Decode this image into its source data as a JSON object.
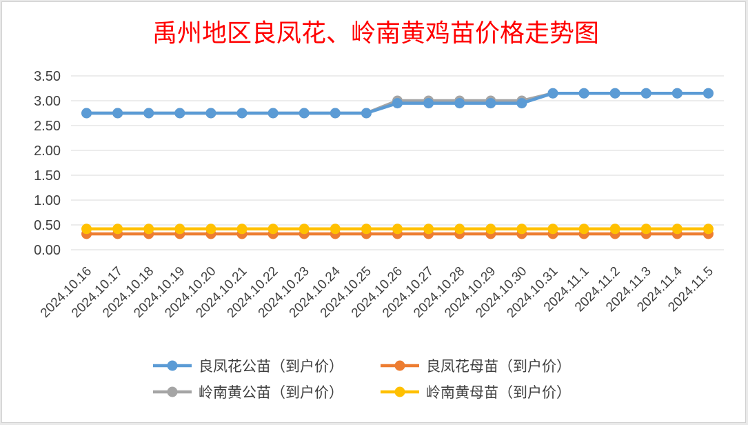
{
  "chart_data": {
    "type": "line",
    "title": "禹州地区良凤花、岭南黄鸡苗价格走势图",
    "xlabel": "",
    "ylabel": "",
    "ylim": [
      0,
      3.5
    ],
    "yticks": [
      "0.00",
      "0.50",
      "1.00",
      "1.50",
      "2.00",
      "2.50",
      "3.00",
      "3.50"
    ],
    "grid": true,
    "legend_position": "bottom",
    "categories": [
      "2024.10.16",
      "2024.10.17",
      "2024.10.18",
      "2024.10.19",
      "2024.10.20",
      "2024.10.21",
      "2024.10.22",
      "2024.10.23",
      "2024.10.24",
      "2024.10.25",
      "2024.10.26",
      "2024.10.27",
      "2024.10.28",
      "2024.10.29",
      "2024.10.30",
      "2024.10.31",
      "2024.11.1",
      "2024.11.2",
      "2024.11.3",
      "2024.11.4",
      "2024.11.5"
    ],
    "series": [
      {
        "name": "良凤花公苗（到户价）",
        "color": "#5b9bd5",
        "values": [
          2.75,
          2.75,
          2.75,
          2.75,
          2.75,
          2.75,
          2.75,
          2.75,
          2.75,
          2.75,
          2.95,
          2.95,
          2.95,
          2.95,
          2.95,
          3.15,
          3.15,
          3.15,
          3.15,
          3.15,
          3.15
        ]
      },
      {
        "name": "良凤花母苗（到户价）",
        "color": "#ed7d31",
        "values": [
          0.32,
          0.32,
          0.32,
          0.32,
          0.32,
          0.32,
          0.32,
          0.32,
          0.32,
          0.32,
          0.32,
          0.32,
          0.32,
          0.32,
          0.32,
          0.32,
          0.32,
          0.32,
          0.32,
          0.32,
          0.32
        ]
      },
      {
        "name": "岭南黄公苗（到户价）",
        "color": "#a5a5a5",
        "values": [
          2.75,
          2.75,
          2.75,
          2.75,
          2.75,
          2.75,
          2.75,
          2.75,
          2.75,
          2.75,
          3.0,
          3.0,
          3.0,
          3.0,
          3.0,
          3.15,
          3.15,
          3.15,
          3.15,
          3.15,
          3.15
        ]
      },
      {
        "name": "岭南黄母苗（到户价）",
        "color": "#ffc000",
        "values": [
          0.42,
          0.42,
          0.42,
          0.42,
          0.42,
          0.42,
          0.42,
          0.42,
          0.42,
          0.42,
          0.42,
          0.42,
          0.42,
          0.42,
          0.42,
          0.42,
          0.42,
          0.42,
          0.42,
          0.42,
          0.42
        ]
      }
    ]
  }
}
